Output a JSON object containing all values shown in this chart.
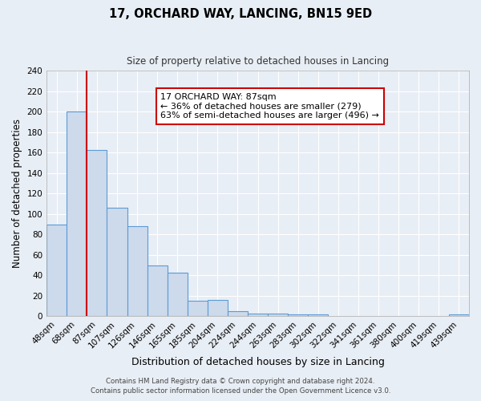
{
  "title1": "17, ORCHARD WAY, LANCING, BN15 9ED",
  "title2": "Size of property relative to detached houses in Lancing",
  "xlabel": "Distribution of detached houses by size in Lancing",
  "ylabel": "Number of detached properties",
  "bar_labels": [
    "48sqm",
    "68sqm",
    "87sqm",
    "107sqm",
    "126sqm",
    "146sqm",
    "165sqm",
    "185sqm",
    "204sqm",
    "224sqm",
    "244sqm",
    "263sqm",
    "283sqm",
    "302sqm",
    "322sqm",
    "341sqm",
    "361sqm",
    "380sqm",
    "400sqm",
    "419sqm",
    "439sqm"
  ],
  "bar_heights": [
    90,
    200,
    163,
    106,
    88,
    50,
    43,
    15,
    16,
    5,
    3,
    3,
    2,
    2,
    0,
    0,
    0,
    0,
    0,
    0,
    2
  ],
  "bar_color": "#ccdaec",
  "bar_edge_color": "#5b9bd5",
  "red_line_bar_index": 2,
  "ylim": [
    0,
    240
  ],
  "yticks": [
    0,
    20,
    40,
    60,
    80,
    100,
    120,
    140,
    160,
    180,
    200,
    220,
    240
  ],
  "annotation_title": "17 ORCHARD WAY: 87sqm",
  "annotation_line1": "← 36% of detached houses are smaller (279)",
  "annotation_line2": "63% of semi-detached houses are larger (496) →",
  "annotation_box_color": "#ffffff",
  "annotation_box_edge_color": "#cc0000",
  "footer1": "Contains HM Land Registry data © Crown copyright and database right 2024.",
  "footer2": "Contains public sector information licensed under the Open Government Licence v3.0.",
  "background_color": "#e8eef5",
  "grid_color": "#ffffff"
}
